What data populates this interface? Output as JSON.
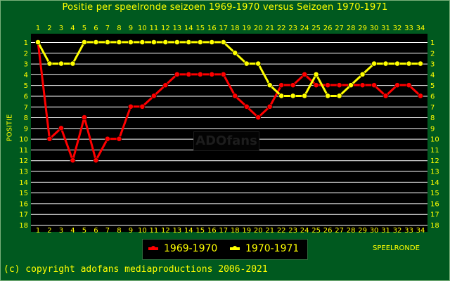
{
  "title": "Positie per speelronde seizoen 1969-1970 versus Seizoen 1970-1971",
  "watermark": "ADOfans",
  "copyright": "(c) copyright adofans mediaproductions 2006-2021",
  "colors": {
    "background": "#00591f",
    "plot_background": "#000000",
    "grid": "#ffffff",
    "text": "#ffff00",
    "series_1": "#ff0000",
    "series_2": "#ffff00"
  },
  "chart_data": {
    "type": "line",
    "title": "Positie per speelronde seizoen 1969-1970 versus Seizoen 1970-1971",
    "xlabel": "SPEELRONDE",
    "ylabel": "POSITIE",
    "x": [
      1,
      2,
      3,
      4,
      5,
      6,
      7,
      8,
      9,
      10,
      11,
      12,
      13,
      14,
      15,
      16,
      17,
      18,
      19,
      20,
      21,
      22,
      23,
      24,
      25,
      26,
      27,
      28,
      29,
      30,
      31,
      32,
      33,
      34
    ],
    "xlim": [
      1,
      34
    ],
    "ylim": [
      18,
      1
    ],
    "y_inverted": true,
    "y_ticks": [
      1,
      2,
      3,
      4,
      5,
      6,
      7,
      8,
      9,
      10,
      11,
      12,
      13,
      14,
      15,
      16,
      17,
      18
    ],
    "grid": true,
    "legend_position": "bottom-center",
    "series": [
      {
        "name": "1969-1970",
        "color": "#ff0000",
        "values": [
          1,
          10,
          9,
          12,
          8,
          12,
          10,
          10,
          7,
          7,
          6,
          5,
          4,
          4,
          4,
          4,
          4,
          6,
          7,
          8,
          7,
          5,
          5,
          4,
          5,
          5,
          5,
          5,
          5,
          5,
          6,
          5,
          5,
          6
        ]
      },
      {
        "name": "1970-1971",
        "color": "#ffff00",
        "values": [
          1,
          3,
          3,
          3,
          1,
          1,
          1,
          1,
          1,
          1,
          1,
          1,
          1,
          1,
          1,
          1,
          1,
          2,
          3,
          3,
          5,
          6,
          6,
          6,
          4,
          6,
          6,
          5,
          4,
          3,
          3,
          3,
          3,
          3
        ]
      }
    ]
  }
}
